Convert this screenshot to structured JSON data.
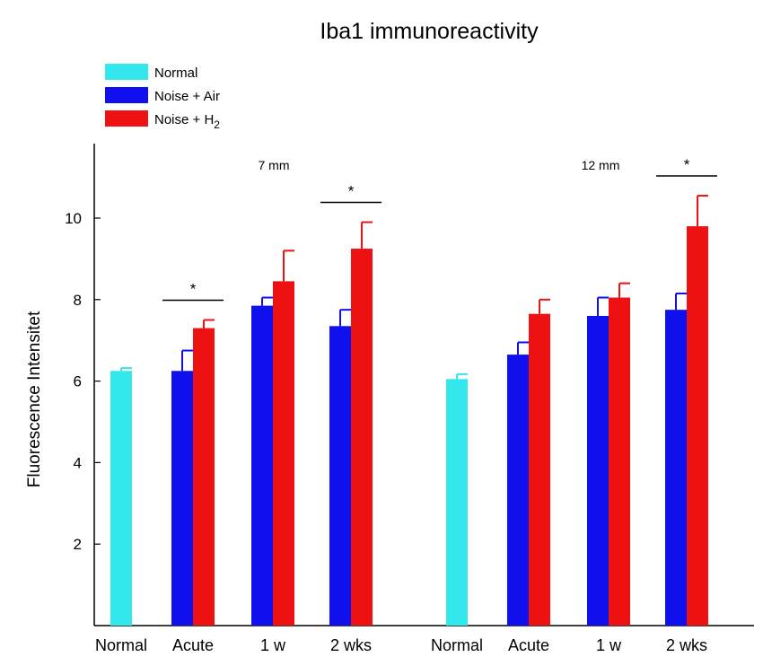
{
  "chart_data": {
    "type": "bar",
    "title": "Iba1 immunoreactivity",
    "ylabel": "Fluorescence Intensitet",
    "xlabel": "",
    "ylim": [
      0,
      12
    ],
    "yticks": [
      2,
      4,
      6,
      8,
      10
    ],
    "legend": {
      "placement": "top-left",
      "entries": [
        {
          "name": "Normal",
          "color": "#33e8ec"
        },
        {
          "name": "Noise + Air",
          "color": "#1010ee"
        },
        {
          "name": "Noise + H",
          "subscript": "2",
          "color": "#ee1111"
        }
      ]
    },
    "panels": [
      {
        "label": "7 mm",
        "groups": [
          {
            "label": "Normal",
            "bars": [
              {
                "series": "Normal",
                "value": 6.25,
                "error": 0.07
              }
            ]
          },
          {
            "label": "Acute",
            "bars": [
              {
                "series": "Noise + Air",
                "value": 6.25,
                "error": 0.5
              },
              {
                "series": "Noise + H2",
                "value": 7.3,
                "error": 0.2
              }
            ],
            "significance": "*"
          },
          {
            "label": "1 w",
            "bars": [
              {
                "series": "Noise + Air",
                "value": 7.85,
                "error": 0.2
              },
              {
                "series": "Noise + H2",
                "value": 8.45,
                "error": 0.75
              }
            ]
          },
          {
            "label": "2 wks",
            "bars": [
              {
                "series": "Noise + Air",
                "value": 7.35,
                "error": 0.4
              },
              {
                "series": "Noise + H2",
                "value": 9.25,
                "error": 0.65
              }
            ],
            "significance": "*"
          }
        ]
      },
      {
        "label": "12 mm",
        "groups": [
          {
            "label": "Normal",
            "bars": [
              {
                "series": "Normal",
                "value": 6.05,
                "error": 0.12
              }
            ]
          },
          {
            "label": "Acute",
            "bars": [
              {
                "series": "Noise + Air",
                "value": 6.65,
                "error": 0.3
              },
              {
                "series": "Noise + H2",
                "value": 7.65,
                "error": 0.35
              }
            ]
          },
          {
            "label": "1 w",
            "bars": [
              {
                "series": "Noise + Air",
                "value": 7.6,
                "error": 0.45
              },
              {
                "series": "Noise + H2",
                "value": 8.05,
                "error": 0.35
              }
            ]
          },
          {
            "label": "2 wks",
            "bars": [
              {
                "series": "Noise + Air",
                "value": 7.75,
                "error": 0.4
              },
              {
                "series": "Noise + H2",
                "value": 9.8,
                "error": 0.75
              }
            ],
            "significance": "*"
          }
        ]
      }
    ]
  }
}
